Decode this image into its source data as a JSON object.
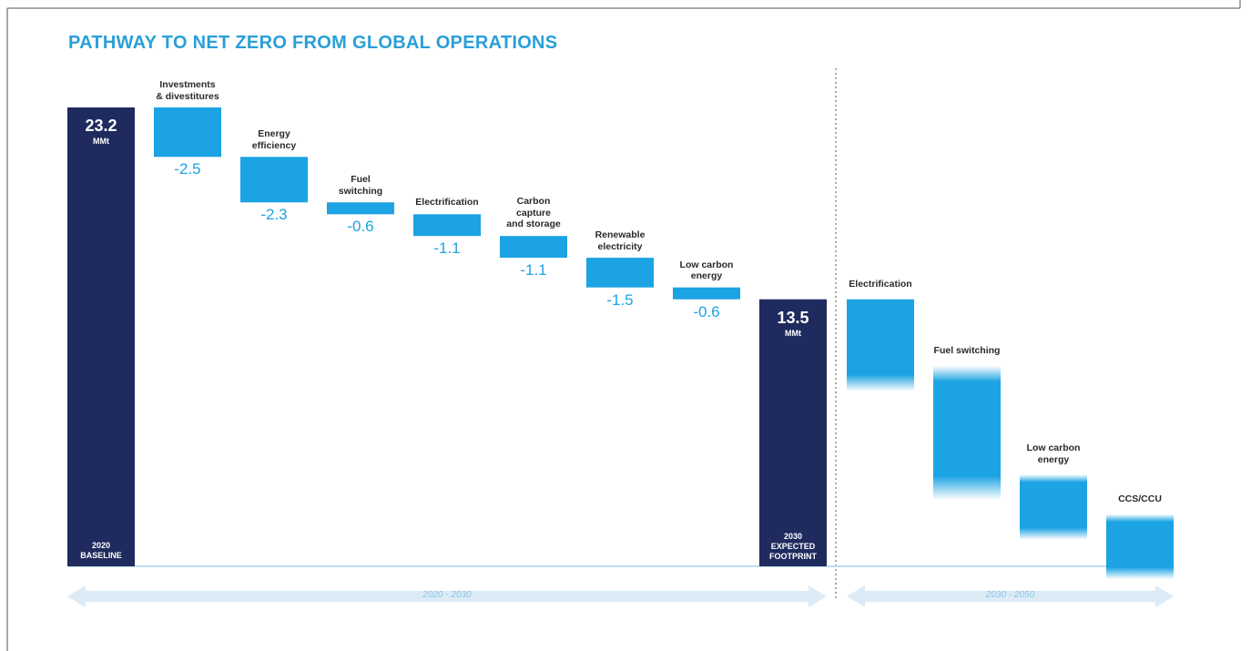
{
  "chart_data": {
    "type": "waterfall",
    "title": "PATHWAY TO NET ZERO FROM GLOBAL OPERATIONS",
    "unit": "MMt",
    "categories": [
      "2020\nBASELINE",
      "Investments\n& divestitures",
      "Energy\nefficiency",
      "Fuel\nswitching",
      "Electrification",
      "Carbon\ncapture\nand storage",
      "Renewable\nelectricity",
      "Low carbon\nenergy",
      "2030\nEXPECTED\nFOOTPRINT",
      "Electrification",
      "Fuel switching",
      "Low carbon\nenergy",
      "CCS/CCU"
    ],
    "values": [
      23.2,
      -2.5,
      -2.3,
      -0.6,
      -1.1,
      -1.1,
      -1.5,
      -0.6,
      13.5,
      -4.0,
      -5.5,
      -2.0,
      -2.0
    ],
    "measures": [
      "total",
      "relative",
      "relative",
      "relative",
      "relative",
      "relative",
      "relative",
      "relative",
      "total",
      "relative",
      "relative",
      "relative",
      "relative"
    ],
    "periods": [
      {
        "label": "2020 - 2030",
        "count": 9
      },
      {
        "label": "2030 - 2050",
        "count": 4
      }
    ],
    "total_color": "#1f2b5e",
    "color": "#1ba3e3"
  }
}
